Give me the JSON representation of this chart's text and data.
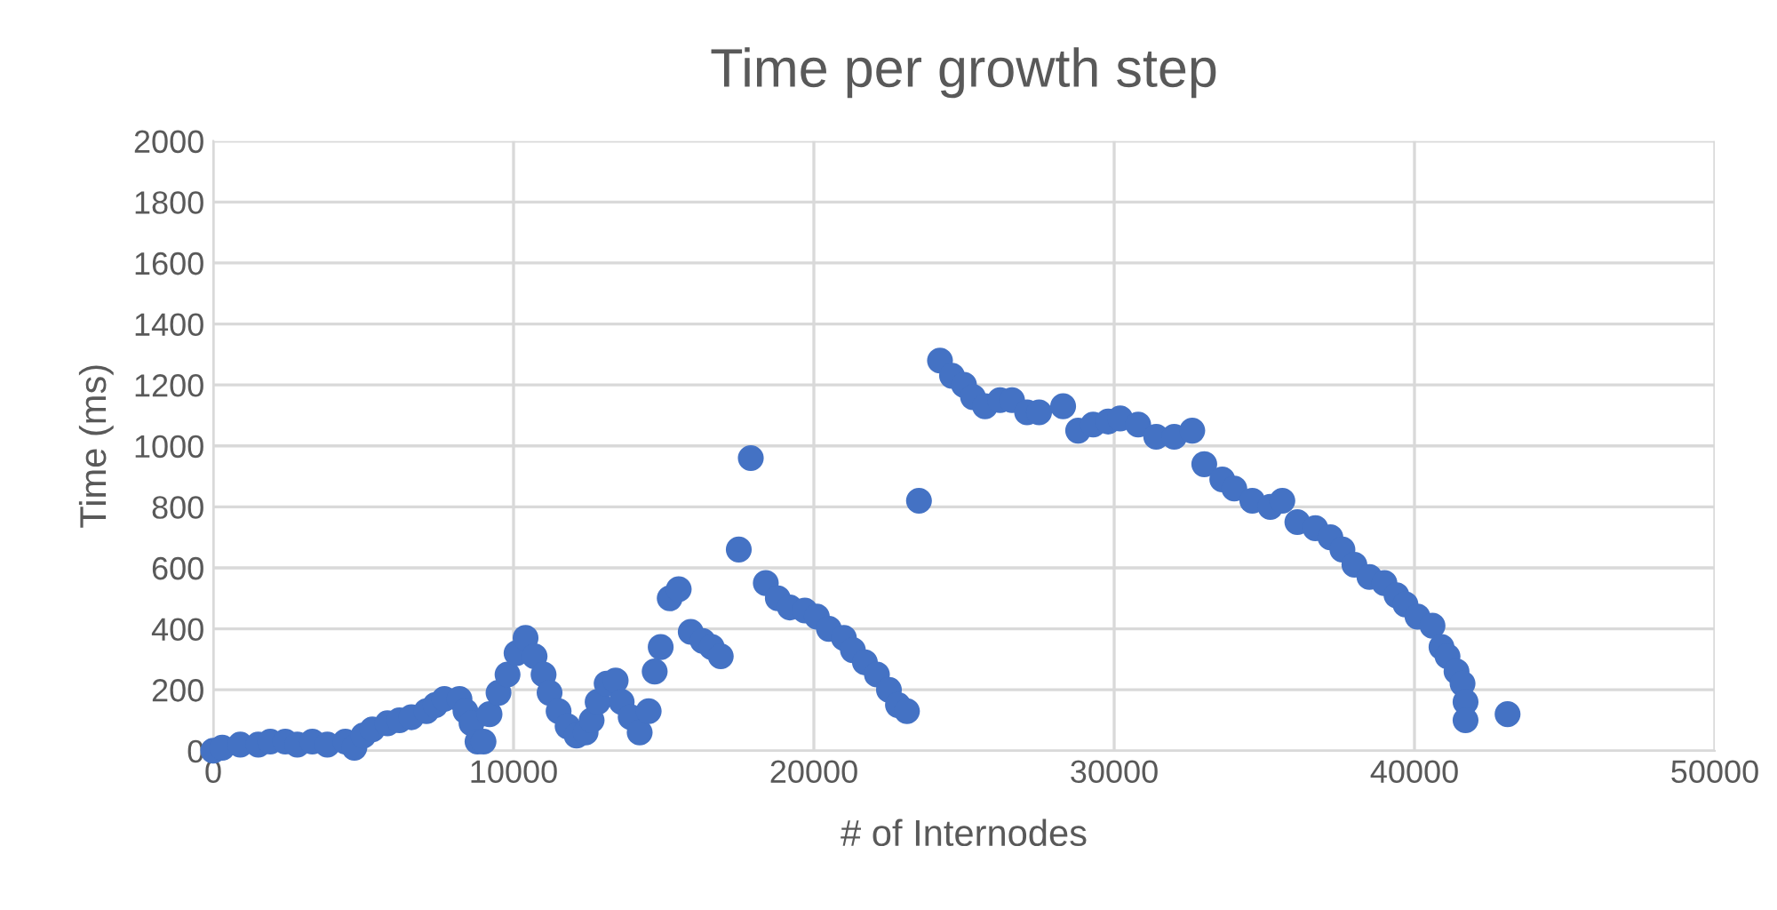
{
  "chart_data": {
    "type": "scatter",
    "title": "Time per growth step",
    "xlabel": "# of Internodes",
    "ylabel": "Time (ms)",
    "x": [
      0,
      300,
      900,
      1500,
      1900,
      2400,
      2800,
      3300,
      3800,
      4400,
      4700,
      5000,
      5300,
      5800,
      6200,
      6600,
      7100,
      7400,
      7700,
      8200,
      8400,
      8600,
      8800,
      9000,
      9200,
      9500,
      9800,
      10100,
      10400,
      10700,
      11000,
      11200,
      11500,
      11800,
      12100,
      12400,
      12600,
      12800,
      13100,
      13400,
      13600,
      13900,
      14200,
      14500,
      14700,
      14900,
      15200,
      15500,
      15900,
      16300,
      16600,
      16900,
      17500,
      17900,
      18400,
      18800,
      19200,
      19700,
      20100,
      20500,
      21000,
      21300,
      21700,
      22100,
      22500,
      22800,
      23100,
      23500,
      24200,
      24600,
      25000,
      25300,
      25700,
      26200,
      26600,
      27100,
      27500,
      28300,
      28800,
      29300,
      29800,
      30200,
      30800,
      31400,
      32000,
      32600,
      33000,
      33600,
      34000,
      34600,
      35200,
      35600,
      36100,
      36700,
      37200,
      37600,
      38000,
      38500,
      39000,
      39400,
      39700,
      40100,
      40600,
      40900,
      41100,
      41400,
      41600,
      41700,
      41700,
      43100
    ],
    "series": [
      {
        "color": "#4472c4",
        "values": [
          0,
          10,
          20,
          20,
          30,
          30,
          20,
          30,
          20,
          30,
          10,
          50,
          70,
          90,
          100,
          110,
          130,
          150,
          170,
          170,
          130,
          90,
          30,
          30,
          120,
          190,
          250,
          320,
          370,
          310,
          250,
          190,
          130,
          80,
          50,
          60,
          100,
          160,
          220,
          230,
          160,
          110,
          60,
          130,
          260,
          340,
          500,
          530,
          390,
          360,
          340,
          310,
          660,
          960,
          550,
          500,
          470,
          460,
          440,
          400,
          370,
          330,
          290,
          250,
          200,
          150,
          130,
          820,
          1280,
          1230,
          1200,
          1160,
          1130,
          1150,
          1150,
          1110,
          1110,
          1130,
          1050,
          1070,
          1080,
          1090,
          1070,
          1030,
          1030,
          1050,
          940,
          890,
          860,
          820,
          800,
          820,
          750,
          730,
          700,
          660,
          610,
          570,
          550,
          510,
          480,
          440,
          410,
          340,
          310,
          260,
          220,
          160,
          100,
          120
        ]
      }
    ],
    "xlim": [
      0,
      50000
    ],
    "xticks": [
      0,
      10000,
      20000,
      30000,
      40000,
      50000
    ],
    "ylim": [
      0,
      2000
    ],
    "yticks": [
      0,
      200,
      400,
      600,
      800,
      1000,
      1200,
      1400,
      1600,
      1800,
      2000
    ],
    "grid": true,
    "marker": "circle"
  }
}
